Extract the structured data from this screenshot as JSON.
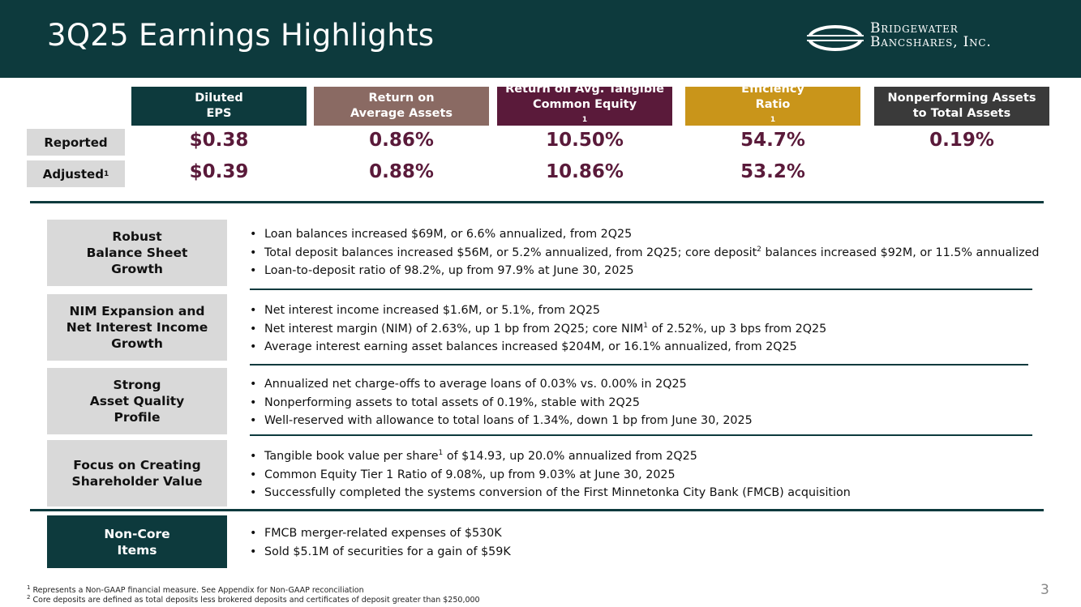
{
  "title": "3Q25 Earnings Highlights",
  "logo": {
    "line1": "Bridgewater",
    "line2": "Bancshares, Inc."
  },
  "metrics": [
    {
      "label1": "Diluted",
      "label2": "EPS",
      "sup": "",
      "color": "#0d3a3d",
      "reported": "$0.38",
      "adjusted": "$0.39"
    },
    {
      "label1": "Return on",
      "label2": "Average Assets",
      "sup": "",
      "color": "#8a6a63",
      "reported": "0.86%",
      "adjusted": "0.88%"
    },
    {
      "label1": "Return on Avg. Tangible",
      "label2": "Common Equity",
      "sup": "1",
      "color": "#5a1a3a",
      "reported": "10.50%",
      "adjusted": "10.86%"
    },
    {
      "label1": "Efficiency",
      "label2": "Ratio",
      "sup": "1",
      "color": "#c9951a",
      "reported": "54.7%",
      "adjusted": "53.2%"
    },
    {
      "label1": "Nonperforming Assets",
      "label2": "to Total Assets",
      "sup": "",
      "color": "#3a3a3a",
      "reported": "0.19%",
      "adjusted": ""
    }
  ],
  "rows": {
    "reported": "Reported",
    "adjusted": "Adjusted",
    "adjusted_sup": "1"
  },
  "sections": [
    {
      "name": "Robust Balance Sheet Growth",
      "lines": [
        "Robust",
        "Balance Sheet",
        "Growth"
      ],
      "bullets": [
        {
          "a": "Loan balances increased $69M, or 6.6% annualized, from 2Q25",
          "sup": "",
          "b": ""
        },
        {
          "a": "Total deposit balances increased $56M, or 5.2% annualized, from 2Q25; core deposit",
          "sup": "2",
          "b": " balances increased $92M, or 11.5% annualized"
        },
        {
          "a": "Loan-to-deposit ratio of 98.2%, up from 97.9% at June 30, 2025",
          "sup": "",
          "b": ""
        }
      ]
    },
    {
      "name": "NIM Expansion and Net Interest Income Growth",
      "lines": [
        "NIM Expansion and",
        "Net Interest Income",
        "Growth"
      ],
      "bullets": [
        {
          "a": "Net interest income increased $1.6M, or 5.1%, from 2Q25",
          "sup": "",
          "b": ""
        },
        {
          "a": "Net interest margin (NIM) of 2.63%, up 1 bp from 2Q25; core NIM",
          "sup": "1",
          "b": " of 2.52%, up 3 bps from 2Q25"
        },
        {
          "a": "Average interest earning asset balances increased $204M, or 16.1% annualized, from 2Q25",
          "sup": "",
          "b": ""
        }
      ]
    },
    {
      "name": "Strong Asset Quality Profile",
      "lines": [
        "Strong",
        "Asset Quality",
        "Profile"
      ],
      "bullets": [
        {
          "a": "Annualized net charge-offs to average loans of 0.03% vs. 0.00% in 2Q25",
          "sup": "",
          "b": ""
        },
        {
          "a": "Nonperforming assets to total assets of 0.19%, stable with 2Q25",
          "sup": "",
          "b": ""
        },
        {
          "a": "Well-reserved with allowance to total loans of 1.34%, down 1 bp from June 30, 2025",
          "sup": "",
          "b": ""
        }
      ]
    },
    {
      "name": "Focus on Creating Shareholder Value",
      "lines": [
        "Focus on Creating",
        "Shareholder Value"
      ],
      "bullets": [
        {
          "a": "Tangible book value per share",
          "sup": "1",
          "b": " of $14.93, up 20.0% annualized from 2Q25"
        },
        {
          "a": "Common Equity Tier 1 Ratio of 9.08%, up from 9.03% at June 30, 2025",
          "sup": "",
          "b": ""
        },
        {
          "a": "Successfully completed the systems conversion of the First Minnetonka City Bank (FMCB) acquisition",
          "sup": "",
          "b": ""
        }
      ]
    },
    {
      "name": "Non-Core Items",
      "lines": [
        "Non-Core",
        "Items"
      ],
      "bullets": [
        {
          "a": "FMCB merger-related expenses of $530K",
          "sup": "",
          "b": ""
        },
        {
          "a": "Sold $5.1M of securities for a gain of $59K",
          "sup": "",
          "b": ""
        }
      ]
    }
  ],
  "footnotes": [
    {
      "sup": "1",
      "text": "Represents a Non-GAAP financial measure. See Appendix for Non-GAAP reconciliation"
    },
    {
      "sup": "2",
      "text": "Core deposits are defined as total deposits less brokered deposits and certificates of deposit greater than $250,000"
    }
  ],
  "page_number": "3",
  "colors": {
    "header": "#0d3a3d",
    "value": "#5a1a3a",
    "label_bg": "#d9d9d9"
  }
}
